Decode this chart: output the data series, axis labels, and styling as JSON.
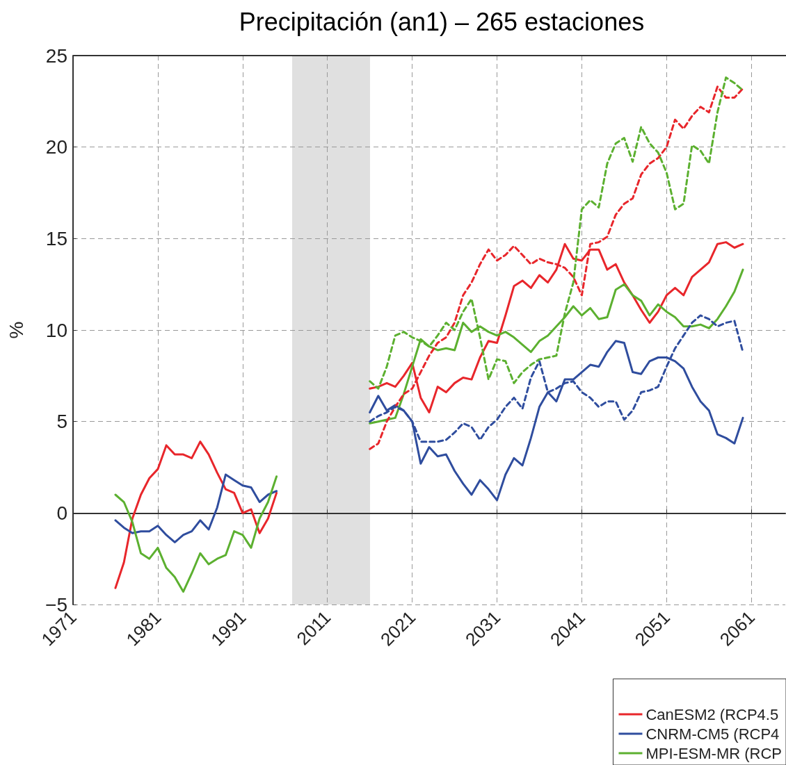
{
  "chart_data": {
    "type": "line",
    "title": "Precipitación (an1) – 265 estaciones",
    "ylabel": "%",
    "categories": [
      "1971",
      null,
      null,
      null,
      null,
      null,
      null,
      null,
      null,
      null,
      "1981",
      null,
      null,
      null,
      null,
      null,
      null,
      null,
      null,
      null,
      "1991",
      null,
      null,
      null,
      null,
      null,
      null,
      null,
      null,
      null,
      "2011",
      null,
      null,
      null,
      null,
      null,
      null,
      null,
      null,
      null,
      "2021",
      null,
      null,
      null,
      null,
      null,
      null,
      null,
      null,
      null,
      "2031",
      null,
      null,
      null,
      null,
      null,
      null,
      null,
      null,
      null,
      "2041",
      null,
      null,
      null,
      null,
      null,
      null,
      null,
      null,
      null,
      "2051",
      null,
      null,
      null,
      null,
      null,
      null,
      null,
      null,
      null,
      "2061",
      null,
      null,
      null,
      null
    ],
    "ylim": [
      -5,
      25
    ],
    "yticks": [
      -5,
      0,
      5,
      10,
      15,
      20,
      25
    ],
    "grid": true,
    "legend": "bottom right",
    "marker": "none",
    "series": [
      {
        "name": "CanESM2 (RCP4.5",
        "color": "#e8262b",
        "line_style": "solid",
        "values": [
          null,
          null,
          null,
          null,
          null,
          -4.1,
          -2.7,
          -0.3,
          1.0,
          1.9,
          2.4,
          3.7,
          3.2,
          3.2,
          3.0,
          3.9,
          3.2,
          2.2,
          1.3,
          1.1,
          0.0,
          0.2,
          -1.1,
          -0.3,
          1.1,
          null,
          null,
          null,
          null,
          null,
          null,
          null,
          null,
          null,
          null,
          6.8,
          6.9,
          7.1,
          6.9,
          7.5,
          8.2,
          6.3,
          5.5,
          6.9,
          6.6,
          7.1,
          7.4,
          7.3,
          8.5,
          9.4,
          9.3,
          10.8,
          12.4,
          12.7,
          12.3,
          13.0,
          12.6,
          13.3,
          14.7,
          13.9,
          13.8,
          14.4,
          14.4,
          13.3,
          13.6,
          12.6,
          11.9,
          11.1,
          10.4,
          11.0,
          11.9,
          12.3,
          11.9,
          12.9,
          13.3,
          13.7,
          14.7,
          14.8,
          14.5,
          14.7,
          null,
          null,
          null,
          null,
          null
        ]
      },
      {
        "name": "CNRM-CM5 (RCP4",
        "color": "#2f4d9e",
        "line_style": "solid",
        "values": [
          null,
          null,
          null,
          null,
          null,
          -0.4,
          -0.8,
          -1.1,
          -1.0,
          -1.0,
          -0.7,
          -1.2,
          -1.6,
          -1.2,
          -1.0,
          -0.4,
          -0.9,
          0.3,
          2.1,
          1.8,
          1.5,
          1.4,
          0.6,
          1.0,
          1.2,
          null,
          null,
          null,
          null,
          null,
          null,
          null,
          null,
          null,
          null,
          5.5,
          6.4,
          5.6,
          5.9,
          5.6,
          5.0,
          2.7,
          3.6,
          3.1,
          3.2,
          2.3,
          1.6,
          1.0,
          1.8,
          1.3,
          0.7,
          2.1,
          3.0,
          2.6,
          4.1,
          5.8,
          6.6,
          6.1,
          7.3,
          7.3,
          7.7,
          8.1,
          8.0,
          8.8,
          9.4,
          9.3,
          7.7,
          7.6,
          8.3,
          8.5,
          8.5,
          8.3,
          7.9,
          6.9,
          6.1,
          5.6,
          4.3,
          4.1,
          3.8,
          5.2,
          null,
          null,
          null,
          null,
          null
        ]
      },
      {
        "name": "MPI-ESM-MR (RCP",
        "color": "#5cb030",
        "line_style": "solid",
        "values": [
          null,
          null,
          null,
          null,
          null,
          1.0,
          0.6,
          -0.5,
          -2.2,
          -2.5,
          -1.9,
          -3.0,
          -3.5,
          -4.3,
          -3.3,
          -2.2,
          -2.8,
          -2.5,
          -2.3,
          -1.0,
          -1.2,
          -1.9,
          -0.3,
          0.6,
          2.0,
          null,
          null,
          null,
          null,
          null,
          null,
          null,
          null,
          null,
          null,
          4.9,
          5.0,
          5.1,
          5.2,
          6.5,
          8.0,
          9.5,
          9.1,
          8.9,
          9.0,
          8.9,
          10.4,
          9.9,
          10.2,
          9.9,
          9.7,
          9.9,
          9.6,
          9.2,
          8.8,
          9.4,
          9.7,
          10.2,
          10.7,
          11.3,
          10.8,
          11.2,
          10.6,
          10.7,
          12.2,
          12.5,
          11.9,
          11.6,
          10.8,
          11.4,
          11.0,
          10.7,
          10.2,
          10.2,
          10.3,
          10.1,
          10.6,
          11.3,
          12.1,
          13.3,
          null,
          null,
          null,
          null,
          null
        ]
      },
      {
        "color": "#e8262b",
        "line_style": "dashed",
        "values": [
          null,
          null,
          null,
          null,
          null,
          null,
          null,
          null,
          null,
          null,
          null,
          null,
          null,
          null,
          null,
          null,
          null,
          null,
          null,
          null,
          null,
          null,
          null,
          null,
          null,
          null,
          null,
          null,
          null,
          null,
          null,
          null,
          null,
          null,
          null,
          3.5,
          3.8,
          5.0,
          5.8,
          6.5,
          6.8,
          7.7,
          8.6,
          9.3,
          9.6,
          10.4,
          11.9,
          12.6,
          13.6,
          14.4,
          13.8,
          14.1,
          14.6,
          14.1,
          13.6,
          13.9,
          13.7,
          13.6,
          13.4,
          12.9,
          11.9,
          14.7,
          14.8,
          15.1,
          16.3,
          16.9,
          17.2,
          18.5,
          19.1,
          19.4,
          20.0,
          21.5,
          21.0,
          21.7,
          22.2,
          21.9,
          23.3,
          22.7,
          22.7,
          23.2,
          null,
          null,
          null,
          null,
          null
        ]
      },
      {
        "color": "#2f4d9e",
        "line_style": "dashed",
        "values": [
          null,
          null,
          null,
          null,
          null,
          null,
          null,
          null,
          null,
          null,
          null,
          null,
          null,
          null,
          null,
          null,
          null,
          null,
          null,
          null,
          null,
          null,
          null,
          null,
          null,
          null,
          null,
          null,
          null,
          null,
          null,
          null,
          null,
          null,
          null,
          5.0,
          5.3,
          5.5,
          5.8,
          5.6,
          5.0,
          3.9,
          3.9,
          3.9,
          4.0,
          4.4,
          4.9,
          4.7,
          4.0,
          4.7,
          5.1,
          5.8,
          6.3,
          5.7,
          7.4,
          8.3,
          6.6,
          6.8,
          7.1,
          7.2,
          6.6,
          6.3,
          5.8,
          6.1,
          6.1,
          5.1,
          5.6,
          6.6,
          6.7,
          6.9,
          8.0,
          9.0,
          9.7,
          10.4,
          10.8,
          10.6,
          10.2,
          10.4,
          10.5,
          8.8,
          null,
          null,
          null,
          null,
          null
        ]
      },
      {
        "color": "#5cb030",
        "line_style": "dashed",
        "values": [
          null,
          null,
          null,
          null,
          null,
          null,
          null,
          null,
          null,
          null,
          null,
          null,
          null,
          null,
          null,
          null,
          null,
          null,
          null,
          null,
          null,
          null,
          null,
          null,
          null,
          null,
          null,
          null,
          null,
          null,
          null,
          null,
          null,
          null,
          null,
          7.2,
          6.8,
          8.0,
          9.7,
          9.9,
          9.6,
          9.4,
          9.1,
          9.7,
          10.4,
          10.0,
          11.0,
          11.7,
          9.6,
          7.3,
          8.4,
          8.3,
          7.1,
          7.7,
          8.1,
          8.4,
          8.5,
          8.6,
          10.9,
          12.6,
          16.6,
          17.1,
          16.7,
          19.1,
          20.2,
          20.5,
          19.2,
          21.1,
          20.2,
          19.7,
          18.6,
          16.6,
          16.9,
          20.1,
          19.8,
          19.1,
          21.9,
          23.8,
          23.5,
          23.1,
          null,
          null,
          null,
          null,
          null
        ]
      }
    ]
  }
}
